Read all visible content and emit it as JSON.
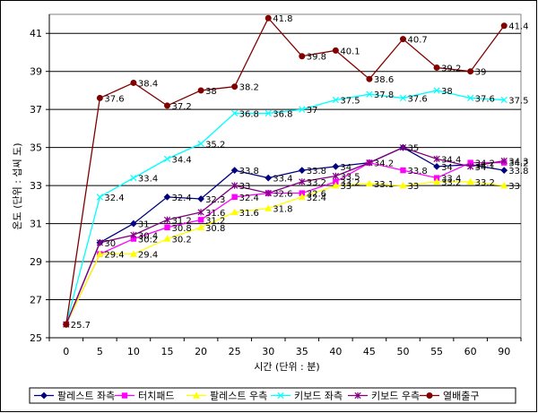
{
  "chart_data": {
    "type": "line",
    "title": "",
    "xlabel": "시간 (단위 : 분)",
    "ylabel": "온도 (단위 : 섭씨 도)",
    "x": [
      0,
      5,
      10,
      15,
      20,
      25,
      30,
      35,
      40,
      45,
      50,
      55,
      60,
      90
    ],
    "x_tick_labels": [
      "0",
      "5",
      "10",
      "15",
      "20",
      "25",
      "30",
      "35",
      "40",
      "45",
      "50",
      "55",
      "60",
      "90"
    ],
    "ylim": [
      25,
      42
    ],
    "y_ticks": [
      25,
      27,
      29,
      31,
      33,
      35,
      37,
      39,
      41
    ],
    "grid": "horizontal",
    "legend_position": "bottom",
    "series": [
      {
        "name": "팔레스트 좌측",
        "color": "#000080",
        "marker": "diamond",
        "values": [
          25.7,
          30,
          31,
          32.4,
          32.3,
          33.8,
          33.4,
          33.8,
          34,
          34.2,
          35,
          34,
          34.1,
          33.8
        ],
        "labels": [
          "",
          "",
          "31",
          "32.4",
          "32.3",
          "33.8",
          "33.4",
          "33.8",
          "34",
          "",
          "35",
          "34",
          "34.1",
          "33.8"
        ]
      },
      {
        "name": "터치패드",
        "color": "#ff00ff",
        "marker": "square",
        "values": [
          25.7,
          29.4,
          30.2,
          30.8,
          31.2,
          32.4,
          32.6,
          32.6,
          33.2,
          34.2,
          33.8,
          33.4,
          34.2,
          34.2
        ],
        "labels": [
          "",
          "",
          "30.2",
          "30.8",
          "31.2",
          "32.4",
          "32.6",
          "32.6",
          "33.2",
          "",
          "33.8",
          "33.4",
          "34.2",
          "34.2"
        ]
      },
      {
        "name": "팔레스트 우측",
        "color": "#ffff00",
        "marker": "triangle",
        "values": [
          25.7,
          29.4,
          29.4,
          30.2,
          30.8,
          31.6,
          31.8,
          32.4,
          33,
          33.1,
          33,
          33.2,
          33.2,
          33
        ],
        "labels": [
          "",
          "29.4",
          "29.4",
          "30.2",
          "30.8",
          "31.6",
          "31.8",
          "32.4",
          "33",
          "33.1",
          "33",
          "33.2",
          "33.2",
          "33"
        ]
      },
      {
        "name": "키보드 좌측",
        "color": "#00ffff",
        "marker": "x",
        "values": [
          25.7,
          32.4,
          33.4,
          34.4,
          35.2,
          36.8,
          36.8,
          37,
          37.5,
          37.8,
          37.6,
          38,
          37.6,
          37.5
        ],
        "labels": [
          "",
          "32.4",
          "33.4",
          "34.4",
          "35.2",
          "36.8",
          "36.8",
          "37",
          "37.5",
          "37.8",
          "37.6",
          "38",
          "37.6",
          "37.5"
        ]
      },
      {
        "name": "키보드 우측",
        "color": "#800080",
        "marker": "star",
        "values": [
          25.7,
          30,
          30.4,
          31.2,
          31.6,
          33,
          32.6,
          33.2,
          33.5,
          34.2,
          35,
          34.4,
          34,
          34.3
        ],
        "labels": [
          "",
          "30",
          "30.4",
          "31.2",
          "31.6",
          "33",
          "",
          "33.2",
          "33.5",
          "34.2",
          "",
          "34.4",
          "34",
          "34.3"
        ]
      },
      {
        "name": "열배출구",
        "color": "#800000",
        "marker": "circle",
        "values": [
          25.7,
          37.6,
          38.4,
          37.2,
          38,
          38.2,
          41.8,
          39.8,
          40.1,
          38.6,
          40.7,
          39.2,
          39,
          41.4
        ],
        "labels": [
          "25.7",
          "37.6",
          "38.4",
          "37.2",
          "38",
          "38.2",
          "41.8",
          "39.8",
          "40.1",
          "38.6",
          "40.7",
          "39.2",
          "39",
          "41.4"
        ]
      }
    ]
  }
}
